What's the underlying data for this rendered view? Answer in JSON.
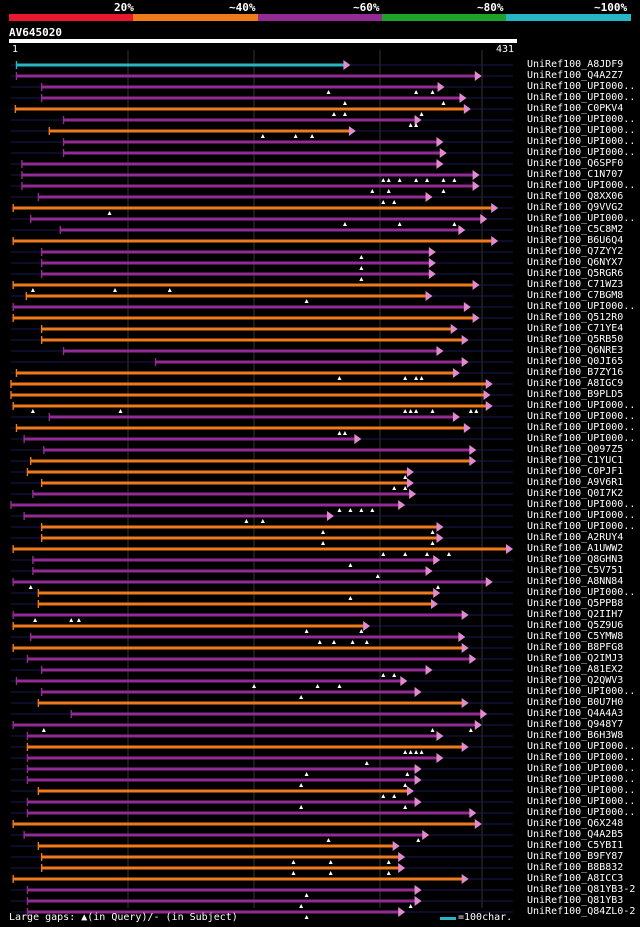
{
  "legend": {
    "bands": [
      {
        "label": "",
        "color": "#e8182e"
      },
      {
        "label": "20%",
        "color": "#ee7a1b"
      },
      {
        "label": "~40%",
        "color": "#922b93"
      },
      {
        "label": "~60%",
        "color": "#1fa22a"
      },
      {
        "label": "~80%",
        "color": "#26b6c4"
      },
      {
        "label": "~100%",
        "color": ""
      }
    ]
  },
  "query": {
    "name": "AV645020",
    "start": "1",
    "end": "431"
  },
  "footer": {
    "gaps_text": "Large gaps: ▲(in Query)/- (in Subject)",
    "scale_text": "=100char."
  },
  "colors": {
    "orange": "#ee7a1b",
    "purple": "#922b93",
    "cyan": "#26b6c4",
    "pink": "#e08ad0"
  },
  "chart_data": {
    "type": "alignment",
    "query_length": 431,
    "hits": [
      {
        "name": "UniRef100_A8JDF9",
        "color": "cyan",
        "start": 5,
        "end": 310,
        "gaps_q": []
      },
      {
        "name": "UniRef100_Q4A2Z7",
        "color": "purple",
        "start": 5,
        "end": 430,
        "gaps_q": []
      },
      {
        "name": "UniRef100_UPI000..",
        "color": "purple",
        "start": 28,
        "end": 396,
        "gaps_q": [
          290,
          370,
          385
        ]
      },
      {
        "name": "UniRef100_UPI000..",
        "color": "purple",
        "start": 28,
        "end": 416,
        "gaps_q": [
          305,
          395
        ]
      },
      {
        "name": "UniRef100_C0PKV4",
        "color": "orange",
        "start": 4,
        "end": 420,
        "gaps_q": [
          295,
          305,
          375
        ]
      },
      {
        "name": "UniRef100_UPI000..",
        "color": "purple",
        "start": 48,
        "end": 375,
        "gaps_q": [
          365,
          370
        ]
      },
      {
        "name": "UniRef100_UPI000..",
        "color": "orange",
        "start": 35,
        "end": 315,
        "gaps_q": [
          230,
          260,
          275
        ]
      },
      {
        "name": "UniRef100_UPI000..",
        "color": "purple",
        "start": 48,
        "end": 395,
        "gaps_q": []
      },
      {
        "name": "UniRef100_UPI000..",
        "color": "purple",
        "start": 48,
        "end": 398,
        "gaps_q": []
      },
      {
        "name": "UniRef100_Q6SPF0",
        "color": "purple",
        "start": 10,
        "end": 395,
        "gaps_q": []
      },
      {
        "name": "UniRef100_C1N707",
        "color": "purple",
        "start": 10,
        "end": 428,
        "gaps_q": [
          340,
          345,
          355,
          370,
          380,
          395,
          405
        ]
      },
      {
        "name": "UniRef100_UPI000..",
        "color": "purple",
        "start": 10,
        "end": 428,
        "gaps_q": [
          330,
          345,
          395
        ]
      },
      {
        "name": "UniRef100_Q8XX06",
        "color": "purple",
        "start": 25,
        "end": 385,
        "gaps_q": [
          340,
          350
        ]
      },
      {
        "name": "UniRef100_Q9VVG2",
        "color": "orange",
        "start": 2,
        "end": 445,
        "gaps_q": [
          90
        ]
      },
      {
        "name": "UniRef100_UPI000..",
        "color": "purple",
        "start": 18,
        "end": 435,
        "gaps_q": [
          305,
          355,
          405
        ]
      },
      {
        "name": "UniRef100_C5C8M2",
        "color": "purple",
        "start": 45,
        "end": 415,
        "gaps_q": []
      },
      {
        "name": "UniRef100_B6U6Q4",
        "color": "orange",
        "start": 2,
        "end": 445,
        "gaps_q": []
      },
      {
        "name": "UniRef100_Q7ZYY2",
        "color": "purple",
        "start": 28,
        "end": 388,
        "gaps_q": [
          320
        ]
      },
      {
        "name": "UniRef100_Q6NYX7",
        "color": "purple",
        "start": 28,
        "end": 388,
        "gaps_q": [
          320
        ]
      },
      {
        "name": "UniRef100_Q5RGR6",
        "color": "purple",
        "start": 28,
        "end": 388,
        "gaps_q": [
          320
        ]
      },
      {
        "name": "UniRef100_C71WZ3",
        "color": "orange",
        "start": 2,
        "end": 428,
        "gaps_q": [
          20,
          95,
          145
        ]
      },
      {
        "name": "UniRef100_C7BGM8",
        "color": "orange",
        "start": 14,
        "end": 385,
        "gaps_q": [
          270
        ]
      },
      {
        "name": "UniRef100_UPI000..",
        "color": "purple",
        "start": 2,
        "end": 420,
        "gaps_q": []
      },
      {
        "name": "UniRef100_Q512R0",
        "color": "orange",
        "start": 2,
        "end": 428,
        "gaps_q": []
      },
      {
        "name": "UniRef100_C71YE4",
        "color": "orange",
        "start": 28,
        "end": 408,
        "gaps_q": []
      },
      {
        "name": "UniRef100_Q5RB50",
        "color": "orange",
        "start": 28,
        "end": 418,
        "gaps_q": []
      },
      {
        "name": "UniRef100_Q6NRE3",
        "color": "purple",
        "start": 48,
        "end": 395,
        "gaps_q": []
      },
      {
        "name": "UniRef100_Q0JI65",
        "color": "purple",
        "start": 132,
        "end": 418,
        "gaps_q": []
      },
      {
        "name": "UniRef100_B7ZY16",
        "color": "orange",
        "start": 5,
        "end": 410,
        "gaps_q": [
          300,
          360,
          370,
          375
        ]
      },
      {
        "name": "UniRef100_A8IGC9",
        "color": "orange",
        "start": 0,
        "end": 440,
        "gaps_q": []
      },
      {
        "name": "UniRef100_B9PLD5",
        "color": "orange",
        "start": 0,
        "end": 438,
        "gaps_q": []
      },
      {
        "name": "UniRef100_UPI000..",
        "color": "orange",
        "start": 2,
        "end": 440,
        "gaps_q": [
          20,
          100,
          360,
          365,
          370,
          385,
          420,
          425
        ]
      },
      {
        "name": "UniRef100_UPI000..",
        "color": "purple",
        "start": 35,
        "end": 410,
        "gaps_q": []
      },
      {
        "name": "UniRef100_UPI000..",
        "color": "orange",
        "start": 5,
        "end": 420,
        "gaps_q": [
          300,
          305
        ]
      },
      {
        "name": "UniRef100_UPI000..",
        "color": "purple",
        "start": 12,
        "end": 320,
        "gaps_q": []
      },
      {
        "name": "UniRef100_Q097Z5",
        "color": "purple",
        "start": 30,
        "end": 425,
        "gaps_q": []
      },
      {
        "name": "UniRef100_C1YUC1",
        "color": "orange",
        "start": 18,
        "end": 425,
        "gaps_q": []
      },
      {
        "name": "UniRef100_C0PJF1",
        "color": "orange",
        "start": 15,
        "end": 368,
        "gaps_q": [
          360
        ]
      },
      {
        "name": "UniRef100_A9V6R1",
        "color": "orange",
        "start": 28,
        "end": 368,
        "gaps_q": [
          350,
          360
        ]
      },
      {
        "name": "UniRef100_Q0I7K2",
        "color": "purple",
        "start": 20,
        "end": 370,
        "gaps_q": []
      },
      {
        "name": "UniRef100_UPI000..",
        "color": "purple",
        "start": 0,
        "end": 360,
        "gaps_q": [
          300,
          310,
          320,
          330
        ]
      },
      {
        "name": "UniRef100_UPI000..",
        "color": "purple",
        "start": 12,
        "end": 295,
        "gaps_q": [
          215,
          230
        ]
      },
      {
        "name": "UniRef100_UPI000..",
        "color": "orange",
        "start": 28,
        "end": 395,
        "gaps_q": [
          285,
          385
        ]
      },
      {
        "name": "UniRef100_A2RUY4",
        "color": "orange",
        "start": 28,
        "end": 395,
        "gaps_q": [
          285,
          385
        ]
      },
      {
        "name": "UniRef100_A1UWW2",
        "color": "orange",
        "start": 2,
        "end": 460,
        "gaps_q": [
          340,
          360,
          380,
          400
        ]
      },
      {
        "name": "UniRef100_Q8GHN3",
        "color": "purple",
        "start": 20,
        "end": 392,
        "gaps_q": [
          310
        ]
      },
      {
        "name": "UniRef100_C5V751",
        "color": "purple",
        "start": 20,
        "end": 385,
        "gaps_q": [
          335
        ]
      },
      {
        "name": "UniRef100_A8NN84",
        "color": "purple",
        "start": 2,
        "end": 440,
        "gaps_q": [
          18,
          390
        ]
      },
      {
        "name": "UniRef100_UPI000..",
        "color": "orange",
        "start": 25,
        "end": 392,
        "gaps_q": [
          310
        ]
      },
      {
        "name": "UniRef100_Q5PPB8",
        "color": "orange",
        "start": 25,
        "end": 390,
        "gaps_q": []
      },
      {
        "name": "UniRef100_Q2IIH7",
        "color": "purple",
        "start": 2,
        "end": 418,
        "gaps_q": [
          22,
          55,
          62
        ]
      },
      {
        "name": "UniRef100_Q5Z9U6",
        "color": "orange",
        "start": 2,
        "end": 328,
        "gaps_q": [
          270,
          320
        ]
      },
      {
        "name": "UniRef100_C5YMW8",
        "color": "purple",
        "start": 18,
        "end": 415,
        "gaps_q": [
          282,
          295,
          312,
          325
        ]
      },
      {
        "name": "UniRef100_B8PFG8",
        "color": "orange",
        "start": 2,
        "end": 418,
        "gaps_q": []
      },
      {
        "name": "UniRef100_Q2IMJ3",
        "color": "purple",
        "start": 15,
        "end": 425,
        "gaps_q": []
      },
      {
        "name": "UniRef100_A81EX2",
        "color": "purple",
        "start": 28,
        "end": 385,
        "gaps_q": [
          340,
          350
        ]
      },
      {
        "name": "UniRef100_Q2QWV3",
        "color": "purple",
        "start": 5,
        "end": 362,
        "gaps_q": [
          222,
          280,
          300
        ]
      },
      {
        "name": "UniRef100_UPI000..",
        "color": "purple",
        "start": 28,
        "end": 375,
        "gaps_q": [
          265
        ]
      },
      {
        "name": "UniRef100_B0U7H0",
        "color": "orange",
        "start": 25,
        "end": 418,
        "gaps_q": []
      },
      {
        "name": "UniRef100_Q4A4A3",
        "color": "purple",
        "start": 55,
        "end": 435,
        "gaps_q": []
      },
      {
        "name": "UniRef100_Q948Y7",
        "color": "purple",
        "start": 2,
        "end": 430,
        "gaps_q": [
          30,
          385,
          420
        ]
      },
      {
        "name": "UniRef100_B6H3W8",
        "color": "purple",
        "start": 15,
        "end": 395,
        "gaps_q": []
      },
      {
        "name": "UniRef100_UPI000..",
        "color": "orange",
        "start": 15,
        "end": 418,
        "gaps_q": [
          360,
          365,
          370,
          375
        ]
      },
      {
        "name": "UniRef100_UPI000..",
        "color": "purple",
        "start": 15,
        "end": 395,
        "gaps_q": [
          325
        ]
      },
      {
        "name": "UniRef100_UPI000..",
        "color": "purple",
        "start": 15,
        "end": 375,
        "gaps_q": [
          270,
          362
        ]
      },
      {
        "name": "UniRef100_UPI000..",
        "color": "purple",
        "start": 15,
        "end": 375,
        "gaps_q": [
          265,
          360
        ]
      },
      {
        "name": "UniRef100_UPI000..",
        "color": "orange",
        "start": 25,
        "end": 368,
        "gaps_q": [
          340,
          350
        ]
      },
      {
        "name": "UniRef100_UPI000..",
        "color": "purple",
        "start": 15,
        "end": 375,
        "gaps_q": [
          265,
          360
        ]
      },
      {
        "name": "UniRef100_UPI000..",
        "color": "purple",
        "start": 15,
        "end": 425,
        "gaps_q": []
      },
      {
        "name": "UniRef100_Q6X248",
        "color": "orange",
        "start": 2,
        "end": 430,
        "gaps_q": []
      },
      {
        "name": "UniRef100_Q4A2B5",
        "color": "purple",
        "start": 12,
        "end": 382,
        "gaps_q": [
          290,
          372
        ]
      },
      {
        "name": "UniRef100_C5YBI1",
        "color": "orange",
        "start": 25,
        "end": 355,
        "gaps_q": []
      },
      {
        "name": "UniRef100_B9FY87",
        "color": "orange",
        "start": 28,
        "end": 360,
        "gaps_q": [
          258,
          292,
          345
        ]
      },
      {
        "name": "UniRef100_B8B832",
        "color": "orange",
        "start": 28,
        "end": 360,
        "gaps_q": [
          258,
          292,
          345
        ]
      },
      {
        "name": "UniRef100_A8ICC3",
        "color": "orange",
        "start": 2,
        "end": 418,
        "gaps_q": []
      },
      {
        "name": "UniRef100_Q81YB3-2",
        "color": "purple",
        "start": 15,
        "end": 375,
        "gaps_q": [
          270
        ]
      },
      {
        "name": "UniRef100_Q81YB3",
        "color": "purple",
        "start": 15,
        "end": 375,
        "gaps_q": [
          265,
          365
        ]
      },
      {
        "name": "UniRef100_Q84ZL0-2",
        "color": "purple",
        "start": 15,
        "end": 360,
        "gaps_q": [
          270
        ]
      }
    ]
  }
}
